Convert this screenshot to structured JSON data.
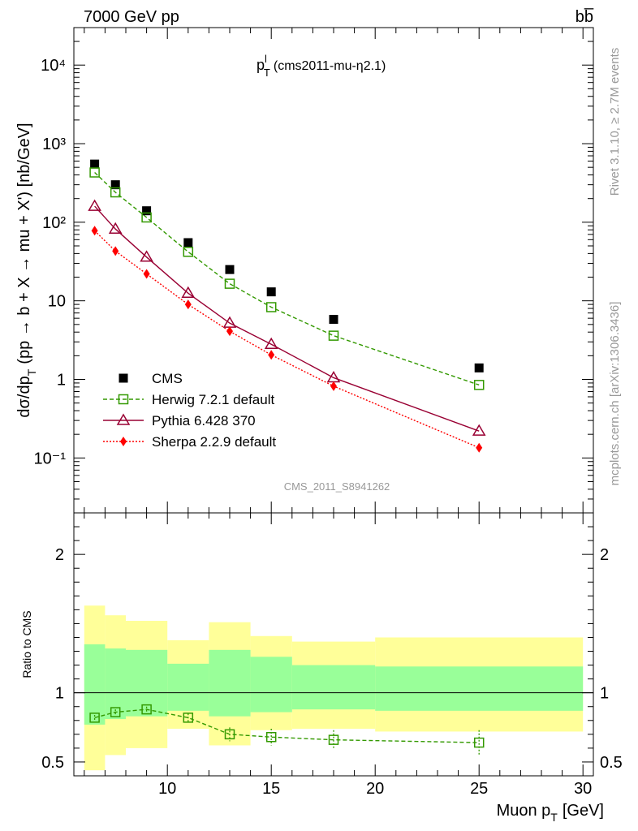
{
  "header": {
    "left": "7000 GeV pp",
    "right": "bb̅"
  },
  "side": {
    "right_top": "Rivet 3.1.10, ≥ 2.7M events",
    "right_bottom": "mcplots.cern.ch [arXiv:1306.3436]"
  },
  "watermark": "CMS_2011_S8941262",
  "colors": {
    "cms": "#000000",
    "herwig": "#339900",
    "pythia": "#990033",
    "sherpa": "#ff0000",
    "band_inner": "#99ff99",
    "band_outer": "#ffff99"
  },
  "chart_data": [
    {
      "type": "scatter",
      "title": "p",
      "title_sup": "l",
      "title_sub": "T",
      "title_rest": "(cms2011-mu-η2.1)",
      "ylabel_main": "dσ/dp",
      "ylabel_sub": "T",
      "ylabel_rest": "(pp → b + X → mu + X') [nb/GeV]",
      "yscale": "log",
      "ylim": [
        0.02,
        30000
      ],
      "xlim": [
        5.5,
        30.5
      ],
      "ytick_labels": [
        "10⁻¹",
        "1",
        "10",
        "10²",
        "10³",
        "10⁴"
      ],
      "ytick_values": [
        0.1,
        1,
        10,
        100,
        1000,
        10000
      ],
      "legend_position": "lower-left",
      "x": [
        6.5,
        7.5,
        9.0,
        11.0,
        13.0,
        15.0,
        18.0,
        25.0
      ],
      "series": [
        {
          "name": "CMS",
          "marker": "square-filled",
          "values": [
            550,
            300,
            140,
            55,
            25,
            13,
            5.8,
            1.4
          ]
        },
        {
          "name": "Herwig 7.2.1 default",
          "marker": "square-open",
          "line": "dashed",
          "values": [
            430,
            240,
            115,
            42,
            16.5,
            8.3,
            3.6,
            0.85
          ]
        },
        {
          "name": "Pythia 6.428 370",
          "marker": "triangle-open",
          "line": "solid",
          "values": [
            160,
            82,
            36,
            12.5,
            5.2,
            2.8,
            1.05,
            0.22
          ]
        },
        {
          "name": "Sherpa 2.2.9 default",
          "marker": "diamond-filled",
          "line": "dotted",
          "values": [
            78,
            43,
            22,
            9.0,
            4.1,
            2.05,
            0.82,
            0.135
          ]
        }
      ]
    },
    {
      "type": "line",
      "ylabel": "Ratio to CMS",
      "xlabel_main": "Muon p",
      "xlabel_sub": "T",
      "xlabel_rest": "[GeV]",
      "ylim": [
        0.4,
        2.3
      ],
      "xlim": [
        5.5,
        30.5
      ],
      "ytick_labels": [
        "0.5",
        "1",
        "2"
      ],
      "ytick_values": [
        0.5,
        1,
        2
      ],
      "xtick_labels": [
        "10",
        "15",
        "20",
        "25",
        "30"
      ],
      "xtick_values": [
        10,
        15,
        20,
        25,
        30
      ],
      "bands": [
        {
          "x0": 6.0,
          "x1": 7.0,
          "inner": [
            0.77,
            1.35
          ],
          "outer": [
            0.44,
            1.63
          ]
        },
        {
          "x0": 7.0,
          "x1": 8.0,
          "inner": [
            0.81,
            1.32
          ],
          "outer": [
            0.55,
            1.56
          ]
        },
        {
          "x0": 8.0,
          "x1": 10.0,
          "inner": [
            0.83,
            1.31
          ],
          "outer": [
            0.6,
            1.52
          ]
        },
        {
          "x0": 10.0,
          "x1": 12.0,
          "inner": [
            0.87,
            1.21
          ],
          "outer": [
            0.74,
            1.38
          ]
        },
        {
          "x0": 12.0,
          "x1": 14.0,
          "inner": [
            0.83,
            1.31
          ],
          "outer": [
            0.62,
            1.51
          ]
        },
        {
          "x0": 14.0,
          "x1": 16.0,
          "inner": [
            0.86,
            1.26
          ],
          "outer": [
            0.73,
            1.41
          ]
        },
        {
          "x0": 16.0,
          "x1": 20.0,
          "inner": [
            0.88,
            1.2
          ],
          "outer": [
            0.74,
            1.37
          ]
        },
        {
          "x0": 20.0,
          "x1": 30.0,
          "inner": [
            0.87,
            1.19
          ],
          "outer": [
            0.72,
            1.4
          ]
        }
      ],
      "series": [
        {
          "name": "Herwig 7.2.1 default",
          "x": [
            6.5,
            7.5,
            9.0,
            11.0,
            13.0,
            15.0,
            18.0,
            25.0
          ],
          "values": [
            0.82,
            0.86,
            0.88,
            0.82,
            0.7,
            0.68,
            0.66,
            0.64
          ],
          "err": [
            0.02,
            0.02,
            0.02,
            0.03,
            0.05,
            0.06,
            0.07,
            0.09
          ]
        }
      ]
    }
  ]
}
